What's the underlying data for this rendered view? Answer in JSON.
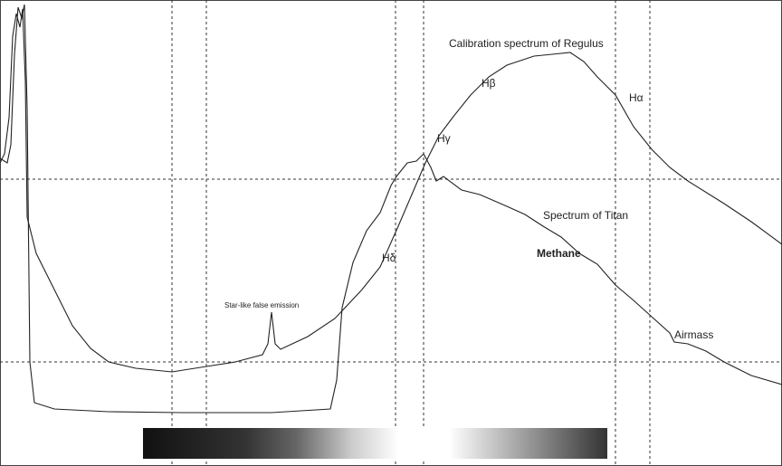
{
  "annotations": {
    "regulus": "Calibration spectrum of Regulus",
    "h_beta": "Hβ",
    "h_alpha": "Hα",
    "h_gamma": "Hγ",
    "titan": "Spectrum of Titan",
    "methane": "Methane",
    "h_delta": "Hδ",
    "false_emission": "Star-like false emission",
    "airmass": "Airmass"
  }
}
